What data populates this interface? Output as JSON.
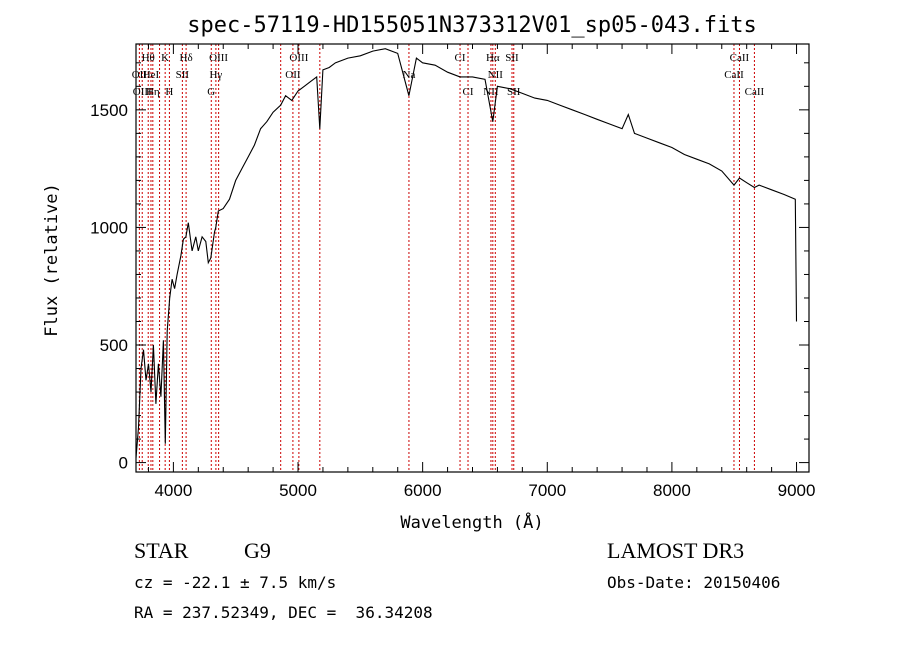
{
  "chart_data": {
    "type": "line",
    "title": "spec-57119-HD155051N373312V01_sp05-043.fits",
    "xlabel": "Wavelength (Å)",
    "ylabel": "Flux (relative)",
    "xlim": [
      3700,
      9100
    ],
    "ylim": [
      -40,
      1780
    ],
    "xticks": [
      4000,
      5000,
      6000,
      7000,
      8000,
      9000
    ],
    "yticks": [
      0,
      500,
      1000,
      1500
    ],
    "spectrum": {
      "x": [
        3700,
        3720,
        3740,
        3760,
        3780,
        3800,
        3820,
        3840,
        3860,
        3880,
        3900,
        3920,
        3935,
        3950,
        3970,
        3990,
        4010,
        4030,
        4060,
        4080,
        4100,
        4120,
        4150,
        4180,
        4200,
        4230,
        4260,
        4280,
        4300,
        4330,
        4340,
        4360,
        4400,
        4450,
        4500,
        4550,
        4600,
        4650,
        4700,
        4750,
        4800,
        4861,
        4900,
        4950,
        5000,
        5050,
        5100,
        5150,
        5175,
        5200,
        5250,
        5300,
        5400,
        5500,
        5600,
        5700,
        5800,
        5890,
        5950,
        6000,
        6100,
        6200,
        6300,
        6400,
        6500,
        6563,
        6600,
        6700,
        6800,
        6900,
        7000,
        7100,
        7200,
        7300,
        7400,
        7500,
        7600,
        7650,
        7700,
        7800,
        7900,
        8000,
        8100,
        8200,
        8300,
        8400,
        8498,
        8542,
        8600,
        8662,
        8700,
        8800,
        8900,
        8990,
        9000
      ],
      "y": [
        20,
        150,
        400,
        480,
        350,
        420,
        300,
        500,
        250,
        420,
        280,
        520,
        80,
        560,
        700,
        780,
        740,
        800,
        880,
        950,
        960,
        1020,
        900,
        960,
        900,
        960,
        940,
        850,
        870,
        980,
        1000,
        1070,
        1080,
        1120,
        1200,
        1250,
        1300,
        1350,
        1420,
        1450,
        1490,
        1520,
        1560,
        1540,
        1580,
        1600,
        1620,
        1640,
        1420,
        1670,
        1680,
        1700,
        1720,
        1730,
        1750,
        1760,
        1740,
        1560,
        1720,
        1700,
        1690,
        1660,
        1640,
        1640,
        1630,
        1450,
        1600,
        1590,
        1570,
        1550,
        1540,
        1520,
        1500,
        1480,
        1460,
        1440,
        1420,
        1480,
        1400,
        1380,
        1360,
        1340,
        1310,
        1290,
        1270,
        1240,
        1180,
        1210,
        1190,
        1170,
        1180,
        1160,
        1140,
        1120,
        600
      ]
    },
    "lines": [
      {
        "wl": 3727,
        "label": "OII",
        "row": 1
      },
      {
        "wl": 3750,
        "label": "OIII",
        "row": 2
      },
      {
        "wl": 3798,
        "label": "Hθ",
        "row": 0
      },
      {
        "wl": 3820,
        "label": "HeI",
        "row": 1
      },
      {
        "wl": 3835,
        "label": "Hη",
        "row": 2
      },
      {
        "wl": 3889,
        "label": "",
        "row": 0
      },
      {
        "wl": 3934,
        "label": "K",
        "row": 0
      },
      {
        "wl": 3968,
        "label": "H",
        "row": 2
      },
      {
        "wl": 4072,
        "label": "SII",
        "row": 1
      },
      {
        "wl": 4102,
        "label": "Hδ",
        "row": 0
      },
      {
        "wl": 4304,
        "label": "G",
        "row": 2
      },
      {
        "wl": 4341,
        "label": "Hγ",
        "row": 1
      },
      {
        "wl": 4363,
        "label": "OIII",
        "row": 0
      },
      {
        "wl": 4861,
        "label": "",
        "row": 0
      },
      {
        "wl": 4959,
        "label": "OII",
        "row": 1
      },
      {
        "wl": 5007,
        "label": "OIII",
        "row": 0
      },
      {
        "wl": 5175,
        "label": "",
        "row": 0
      },
      {
        "wl": 5890,
        "label": "Na",
        "row": 1
      },
      {
        "wl": 6300,
        "label": "CI",
        "row": 0
      },
      {
        "wl": 6364,
        "label": "CI",
        "row": 2
      },
      {
        "wl": 6548,
        "label": "NII",
        "row": 2
      },
      {
        "wl": 6563,
        "label": "Hα",
        "row": 0
      },
      {
        "wl": 6583,
        "label": "NII",
        "row": 1
      },
      {
        "wl": 6717,
        "label": "SII",
        "row": 0
      },
      {
        "wl": 6731,
        "label": "SII",
        "row": 2
      },
      {
        "wl": 8498,
        "label": "CaII",
        "row": 1
      },
      {
        "wl": 8542,
        "label": "CaII",
        "row": 0
      },
      {
        "wl": 8662,
        "label": "CaII",
        "row": 2
      }
    ],
    "grid": false,
    "legend": "none"
  },
  "info": {
    "object_class": "STAR",
    "subclass": "G9",
    "cz": "cz = -22.1 ± 7.5 km/s",
    "coords": "RA = 237.52349, DEC =  36.34208",
    "survey": "LAMOST DR3",
    "obs_date": "Obs-Date: 20150406"
  },
  "colors": {
    "spectrum": "#000000",
    "line_markers": "#cc0000",
    "axes": "#000000",
    "background": "#ffffff"
  }
}
